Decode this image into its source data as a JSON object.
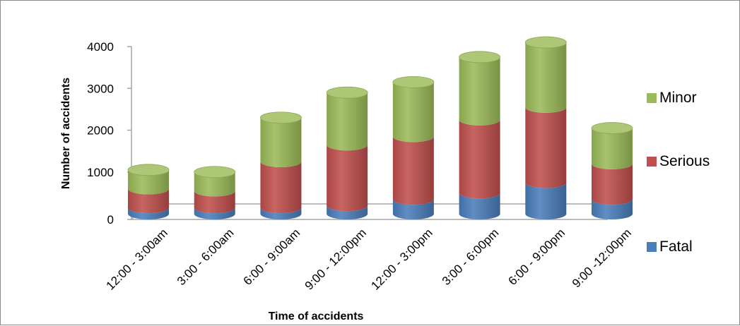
{
  "chart_data": {
    "type": "bar",
    "stacked": true,
    "style": "3d-cylinder",
    "categories": [
      "12:00 - 3:00am",
      "3:00 - 6:00am",
      "6:00 - 9:00am",
      "9:00 - 12:00pm",
      "12:00 - 3:00pm",
      "3:00 - 6:00pm",
      "6:00 - 9:00pm",
      "9:00 -12:00pm"
    ],
    "series": [
      {
        "name": "Fatal",
        "color": "#4a7ebb",
        "values": [
          150,
          150,
          150,
          200,
          350,
          500,
          750,
          350
        ]
      },
      {
        "name": "Serious",
        "color": "#c0504d",
        "values": [
          450,
          400,
          1100,
          1450,
          1500,
          1750,
          1800,
          850
        ]
      },
      {
        "name": "Minor",
        "color": "#9bbb59",
        "values": [
          450,
          450,
          1050,
          1250,
          1300,
          1500,
          1550,
          850
        ]
      }
    ],
    "xlabel": "Time of accidents",
    "ylabel": "Number of accidents",
    "ylim": [
      0,
      4000
    ],
    "yticks": [
      0,
      1000,
      2000,
      3000,
      4000
    ],
    "legend": {
      "position": "right",
      "order": [
        "Minor",
        "Serious",
        "Fatal"
      ]
    },
    "grid": false
  }
}
